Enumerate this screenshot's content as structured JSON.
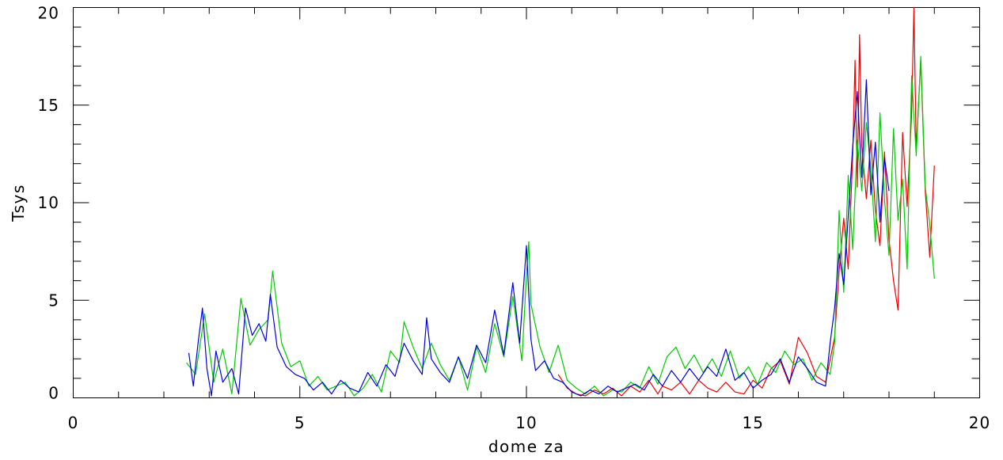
{
  "chart_data": {
    "type": "line",
    "title": "",
    "xlabel": "dome za",
    "ylabel": "Tsys",
    "xlim": [
      0,
      20
    ],
    "ylim": [
      0,
      20
    ],
    "x_major_ticks": [
      0,
      5,
      10,
      15,
      20
    ],
    "x_minor_step": 1,
    "y_major_ticks": [
      0,
      5,
      10,
      15,
      20
    ],
    "y_minor_step": 1,
    "x_tick_labels": [
      "0",
      "5",
      "10",
      "15",
      "20"
    ],
    "y_tick_labels": [
      "0",
      "5",
      "10",
      "15",
      "20"
    ],
    "grid": false,
    "series": [
      {
        "color": "#ee0000",
        "x": [
          10.7,
          10.9,
          11.1,
          11.3,
          11.5,
          11.7,
          11.9,
          12.1,
          12.3,
          12.5,
          12.7,
          12.9,
          13.0,
          13.2,
          13.4,
          13.6,
          13.8,
          14.0,
          14.2,
          14.4,
          14.6,
          14.8,
          15.0,
          15.2,
          15.4,
          15.6,
          15.8,
          16.0,
          16.2,
          16.4,
          16.6,
          16.8,
          16.9,
          17.0,
          17.1,
          17.2,
          17.25,
          17.3,
          17.35,
          17.4,
          17.5,
          17.6,
          17.7,
          17.8,
          17.9,
          18.0,
          18.1,
          18.2,
          18.3,
          18.4,
          18.5,
          18.55,
          18.6,
          18.7,
          18.8,
          18.9,
          19.0
        ],
        "y": [
          1.2,
          0.5,
          0.2,
          0.1,
          0.4,
          0.2,
          0.5,
          0.1,
          0.6,
          0.3,
          0.9,
          0.2,
          0.6,
          0.4,
          0.8,
          0.2,
          0.9,
          0.5,
          0.3,
          0.8,
          0.3,
          0.2,
          0.9,
          0.5,
          1.5,
          1.9,
          0.7,
          3.1,
          2.3,
          1.1,
          0.8,
          3.1,
          6.5,
          9.2,
          6.6,
          12.5,
          17.3,
          10.8,
          18.6,
          12.9,
          10.2,
          13.2,
          9.6,
          7.8,
          12.6,
          8.1,
          6.0,
          4.5,
          13.6,
          9.8,
          14.6,
          20.0,
          12.7,
          17.3,
          10.6,
          7.2,
          11.9
        ]
      },
      {
        "color": "#00cc00",
        "x": [
          2.5,
          2.7,
          2.9,
          3.1,
          3.3,
          3.5,
          3.7,
          3.9,
          4.1,
          4.3,
          4.4,
          4.6,
          4.8,
          5.0,
          5.2,
          5.4,
          5.6,
          5.8,
          6.0,
          6.2,
          6.4,
          6.6,
          6.8,
          7.0,
          7.2,
          7.3,
          7.5,
          7.7,
          7.9,
          8.1,
          8.3,
          8.5,
          8.7,
          8.9,
          9.1,
          9.3,
          9.5,
          9.7,
          9.9,
          10.0,
          10.05,
          10.1,
          10.3,
          10.5,
          10.7,
          10.9,
          11.1,
          11.3,
          11.5,
          11.7,
          11.9,
          12.1,
          12.3,
          12.5,
          12.7,
          12.9,
          13.1,
          13.3,
          13.5,
          13.7,
          13.9,
          14.1,
          14.3,
          14.5,
          14.7,
          14.9,
          15.1,
          15.3,
          15.5,
          15.7,
          15.9,
          16.1,
          16.3,
          16.5,
          16.7,
          16.8,
          16.9,
          17.0,
          17.1,
          17.2,
          17.3,
          17.4,
          17.5,
          17.6,
          17.7,
          17.8,
          17.9,
          18.0,
          18.1,
          18.2,
          18.3,
          18.4,
          18.5,
          18.6,
          18.7,
          18.8,
          18.9,
          19.0
        ],
        "y": [
          1.8,
          1.2,
          4.3,
          0.8,
          2.5,
          0.2,
          5.1,
          2.7,
          3.5,
          4.0,
          6.5,
          2.8,
          1.6,
          1.9,
          0.6,
          1.1,
          0.4,
          0.6,
          0.8,
          0.1,
          0.5,
          1.2,
          0.3,
          2.4,
          1.8,
          3.9,
          2.6,
          1.5,
          2.8,
          1.7,
          0.9,
          2.1,
          0.4,
          2.6,
          1.3,
          3.8,
          2.1,
          5.2,
          1.9,
          6.3,
          8.0,
          4.8,
          2.6,
          1.3,
          2.7,
          0.9,
          0.5,
          0.2,
          0.6,
          0.1,
          0.4,
          0.3,
          0.8,
          0.5,
          1.6,
          0.7,
          2.1,
          2.6,
          1.5,
          2.2,
          1.3,
          2.0,
          1.1,
          2.4,
          1.0,
          1.6,
          0.7,
          1.8,
          1.3,
          2.4,
          1.7,
          2.0,
          0.9,
          1.8,
          1.2,
          2.8,
          9.6,
          5.4,
          11.4,
          7.6,
          13.2,
          10.6,
          14.1,
          11.8,
          8.0,
          14.6,
          10.2,
          7.3,
          13.8,
          9.1,
          11.2,
          6.6,
          16.5,
          12.4,
          17.5,
          10.8,
          8.9,
          6.1
        ]
      },
      {
        "color": "#0000dd",
        "x": [
          2.55,
          2.65,
          2.75,
          2.85,
          2.95,
          3.05,
          3.15,
          3.3,
          3.5,
          3.65,
          3.8,
          3.95,
          4.1,
          4.25,
          4.35,
          4.5,
          4.7,
          4.9,
          5.1,
          5.3,
          5.5,
          5.7,
          5.9,
          6.1,
          6.3,
          6.5,
          6.7,
          6.9,
          7.1,
          7.3,
          7.5,
          7.7,
          7.8,
          7.9,
          8.1,
          8.3,
          8.5,
          8.7,
          8.9,
          9.1,
          9.3,
          9.5,
          9.7,
          9.85,
          10.0,
          10.1,
          10.2,
          10.4,
          10.6,
          10.8,
          11.0,
          11.2,
          11.4,
          11.6,
          11.8,
          12.0,
          12.2,
          12.4,
          12.6,
          12.8,
          13.0,
          13.2,
          13.4,
          13.6,
          13.8,
          14.0,
          14.2,
          14.4,
          14.6,
          14.8,
          15.0,
          15.2,
          15.4,
          15.6,
          15.8,
          16.0,
          16.2,
          16.4,
          16.6,
          16.7,
          16.8,
          16.9,
          17.0,
          17.1,
          17.2,
          17.3,
          17.4,
          17.5,
          17.6,
          17.7,
          17.8,
          17.9,
          18.0
        ],
        "y": [
          2.3,
          0.6,
          2.7,
          4.6,
          1.5,
          0.1,
          2.4,
          0.8,
          1.5,
          0.2,
          4.6,
          3.2,
          3.8,
          2.9,
          5.3,
          2.6,
          1.6,
          1.2,
          1.0,
          0.4,
          0.8,
          0.2,
          0.9,
          0.5,
          0.3,
          1.3,
          0.6,
          1.7,
          1.1,
          2.8,
          1.9,
          1.2,
          4.1,
          2.0,
          1.3,
          0.8,
          2.1,
          1.0,
          2.7,
          1.8,
          4.5,
          2.2,
          5.9,
          2.8,
          7.8,
          3.0,
          1.4,
          1.9,
          1.0,
          0.8,
          0.3,
          0.1,
          0.4,
          0.2,
          0.6,
          0.3,
          0.5,
          0.7,
          0.4,
          1.2,
          0.6,
          1.4,
          0.8,
          1.5,
          0.9,
          1.6,
          1.1,
          2.5,
          0.9,
          1.3,
          0.5,
          0.9,
          1.2,
          2.0,
          0.8,
          2.1,
          1.5,
          0.8,
          0.6,
          2.8,
          4.6,
          7.4,
          5.8,
          9.3,
          12.9,
          15.7,
          11.3,
          16.3,
          10.4,
          13.1,
          9.0,
          12.3,
          10.6
        ]
      }
    ]
  }
}
